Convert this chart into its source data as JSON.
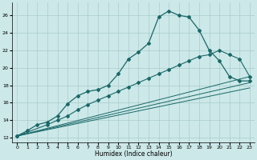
{
  "xlabel": "Humidex (Indice chaleur)",
  "ylabel": "",
  "xlim": [
    -0.5,
    23.5
  ],
  "ylim": [
    11.5,
    27.5
  ],
  "xticks": [
    0,
    1,
    2,
    3,
    4,
    5,
    6,
    7,
    8,
    9,
    10,
    11,
    12,
    13,
    14,
    15,
    16,
    17,
    18,
    19,
    20,
    21,
    22,
    23
  ],
  "yticks": [
    12,
    14,
    16,
    18,
    20,
    22,
    24,
    26
  ],
  "bg_color": "#cce8e8",
  "grid_color": "#aacccc",
  "line_color": "#1a6868",
  "s1x": [
    0,
    1,
    2,
    3,
    4,
    5,
    6,
    7,
    8,
    9,
    10,
    11,
    12,
    13,
    14,
    15,
    16,
    17,
    18,
    19,
    20,
    21,
    22,
    23
  ],
  "s1y": [
    12.2,
    12.8,
    13.5,
    13.8,
    14.5,
    15.9,
    16.8,
    17.3,
    17.5,
    18.0,
    19.3,
    21.0,
    21.8,
    22.8,
    25.8,
    26.5,
    26.0,
    25.8,
    24.3,
    22.0,
    20.8,
    19.0,
    18.5,
    18.5
  ],
  "s2x": [
    0,
    3,
    4,
    5,
    6,
    7,
    8,
    9,
    10,
    11,
    12,
    13,
    14,
    15,
    16,
    17,
    18,
    19,
    20,
    21,
    22,
    23
  ],
  "s2y": [
    12.2,
    13.5,
    14.0,
    14.5,
    15.2,
    15.8,
    16.3,
    16.8,
    17.3,
    17.8,
    18.3,
    18.8,
    19.3,
    19.8,
    20.3,
    20.8,
    21.3,
    21.5,
    22.0,
    21.5,
    21.0,
    19.0
  ],
  "diag1x": [
    0,
    23
  ],
  "diag1y": [
    12.2,
    19.0
  ],
  "diag2x": [
    0,
    23
  ],
  "diag2y": [
    12.2,
    18.3
  ],
  "diag3x": [
    0,
    23
  ],
  "diag3y": [
    12.2,
    17.7
  ]
}
